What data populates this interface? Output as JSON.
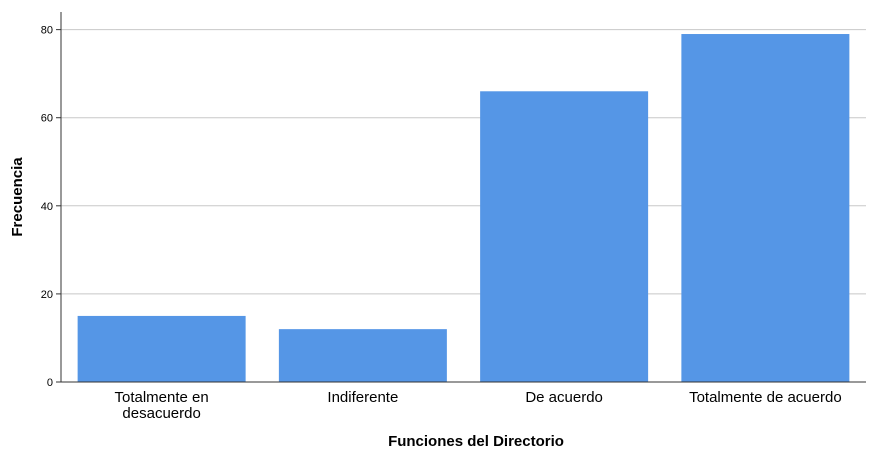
{
  "chart_data": {
    "type": "bar",
    "categories": [
      [
        "Totalmente en",
        "desacuerdo"
      ],
      [
        "Indiferente"
      ],
      [
        "De acuerdo"
      ],
      [
        "Totalmente de acuerdo"
      ]
    ],
    "values": [
      15,
      12,
      66,
      79
    ],
    "xlabel": "Funciones del Directorio",
    "ylabel": "Frecuencia",
    "ylim": [
      0,
      84
    ],
    "yticks": [
      0,
      20,
      40,
      60,
      80
    ],
    "grid": true,
    "legend": "none",
    "bar_color": "#5596e6",
    "grid_color": "#c8c8c8",
    "axis_color": "#333333"
  }
}
